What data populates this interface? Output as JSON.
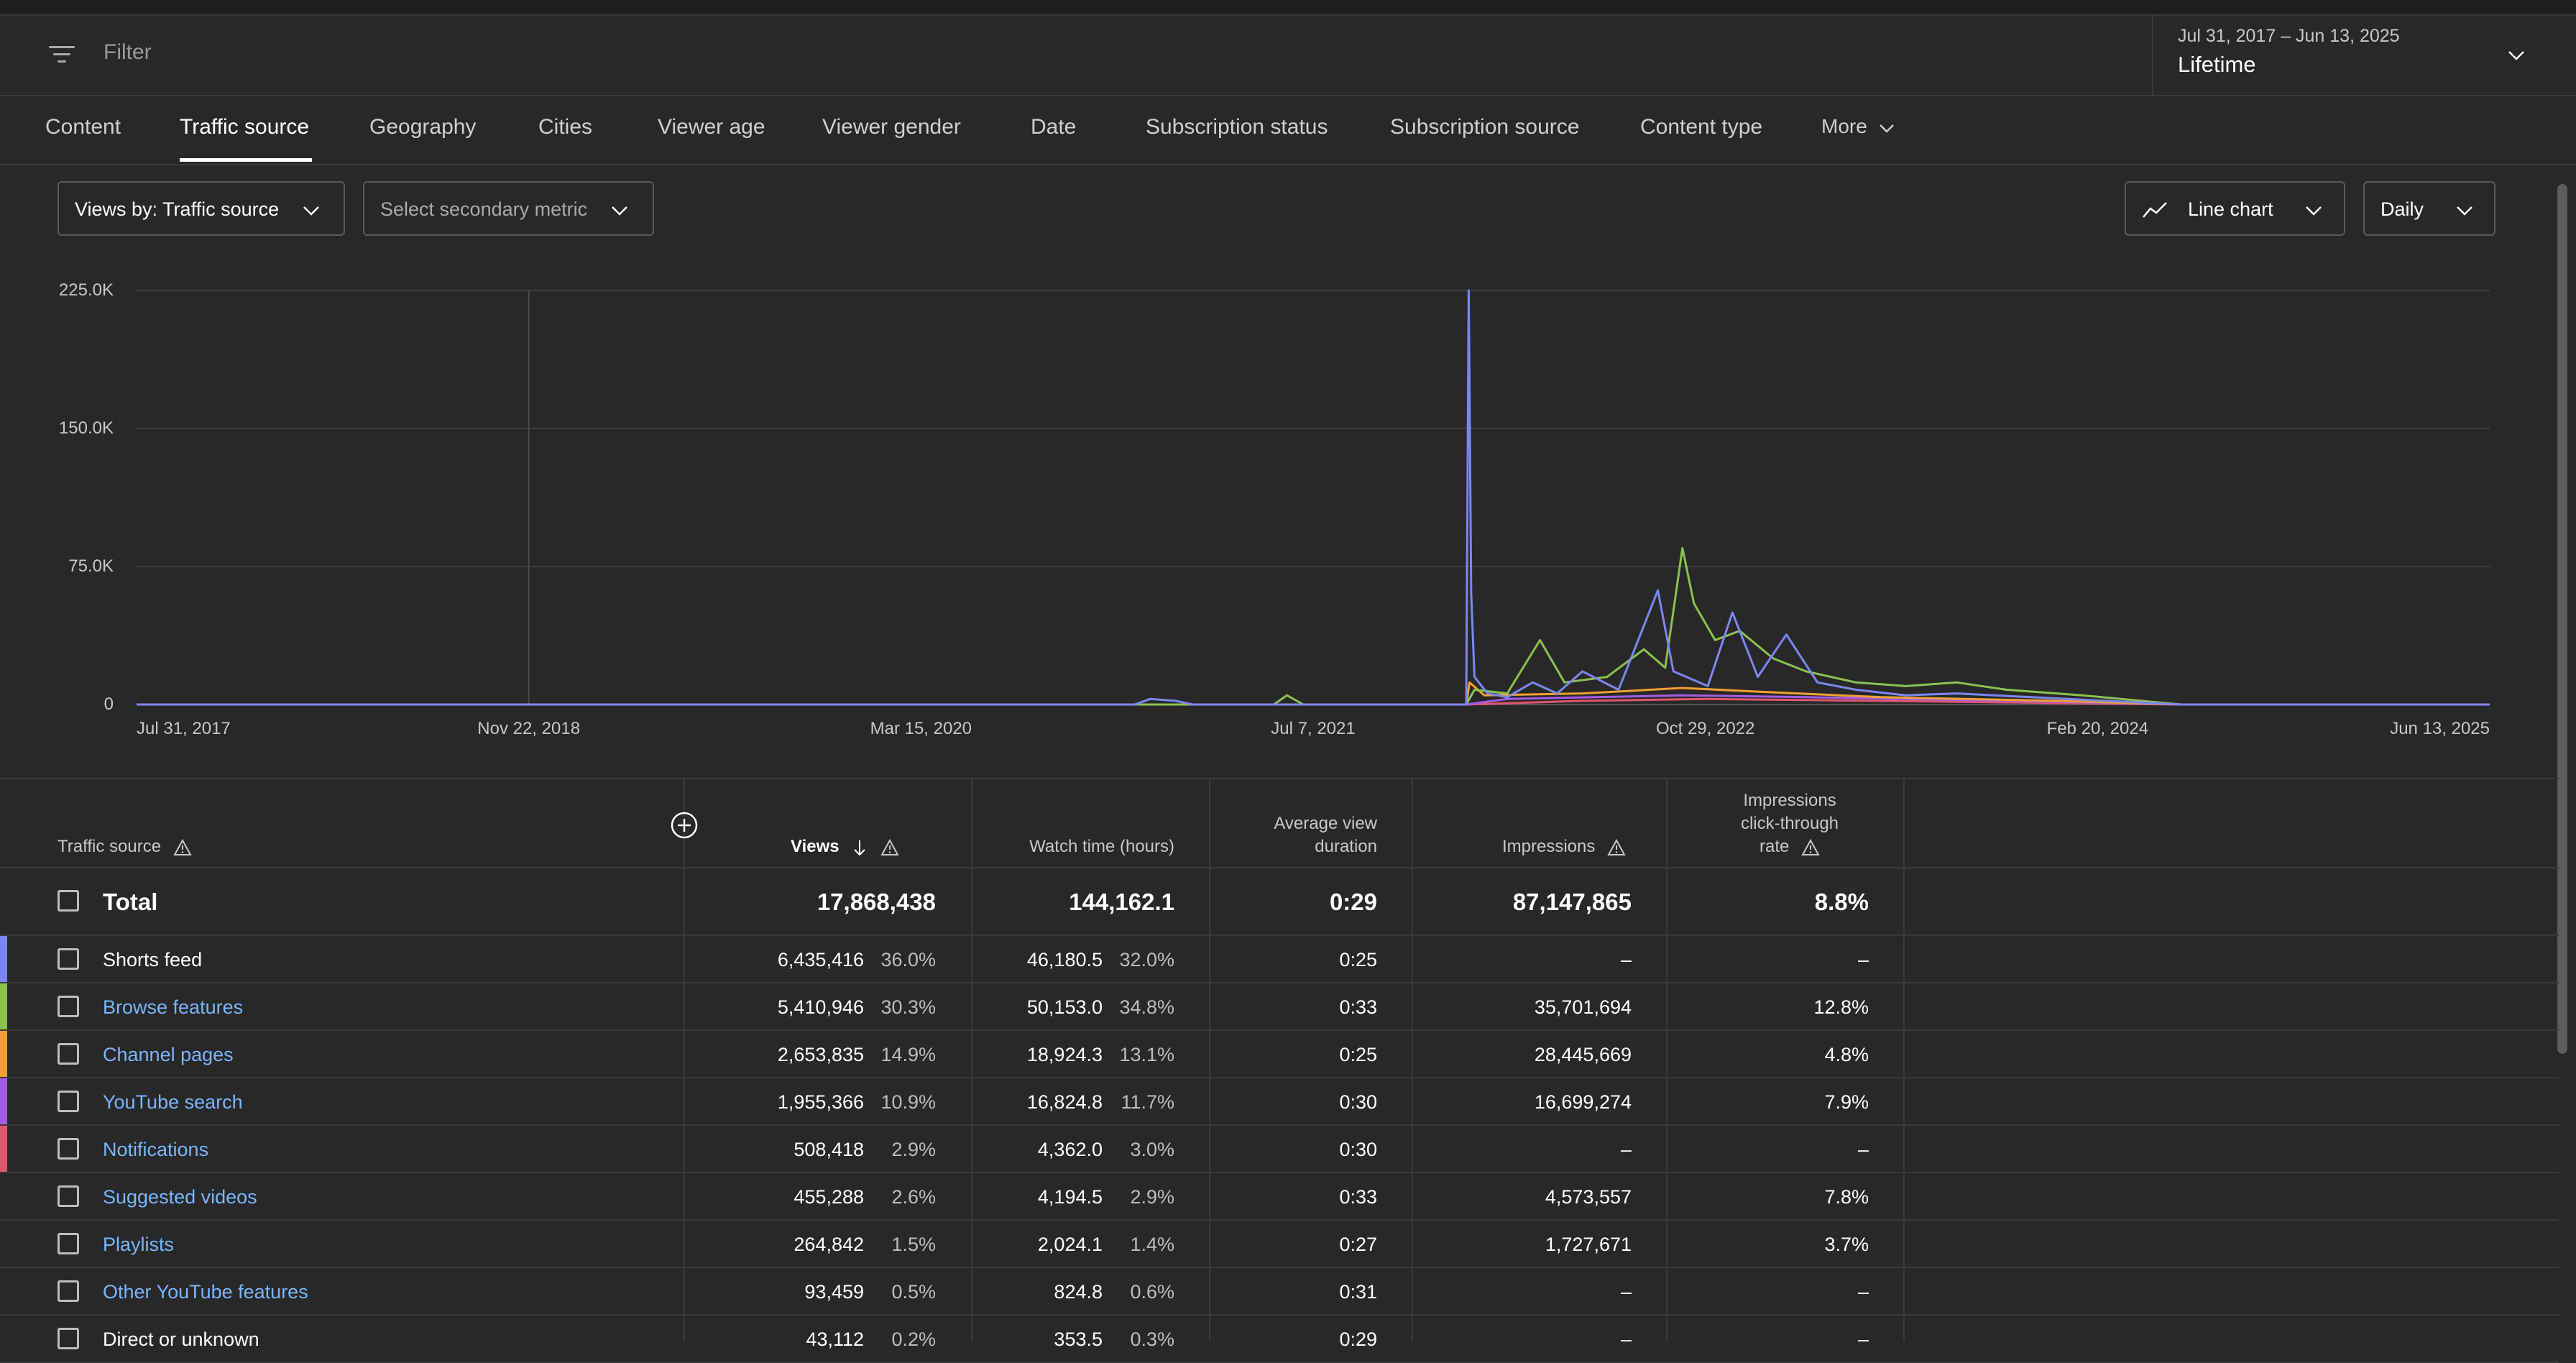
{
  "filter": {
    "placeholder": "Filter"
  },
  "date_range": {
    "range": "Jul 31, 2017 – Jun 13, 2025",
    "period": "Lifetime"
  },
  "tabs": [
    "Content",
    "Traffic source",
    "Geography",
    "Cities",
    "Viewer age",
    "Viewer gender",
    "Date",
    "Subscription status",
    "Subscription source",
    "Content type",
    "More"
  ],
  "active_tab": "Traffic source",
  "controls": {
    "primary_metric": "Views by: Traffic source",
    "secondary_metric": "Select secondary metric",
    "chart_type": "Line chart",
    "granularity": "Daily"
  },
  "colors": {
    "shorts": "#7b87f0",
    "browse": "#8cc152",
    "channel": "#f0a030",
    "search": "#a45ce6",
    "notifications": "#e0566e",
    "background": "#282828",
    "link": "#7ab6ff"
  },
  "chart_data": {
    "type": "line",
    "y_ticks": [
      "0",
      "75.0K",
      "150.0K",
      "225.0K"
    ],
    "ylim": [
      0,
      225000
    ],
    "x_ticks": [
      "Jul 31, 2017",
      "Nov 22, 2018",
      "Mar 15, 2020",
      "Jul 7, 2021",
      "Oct 29, 2022",
      "Feb 20, 2024",
      "Jun 13, 2025"
    ],
    "x_range": [
      "2017-07-31",
      "2025-06-13"
    ],
    "grid": true,
    "series": [
      {
        "name": "Shorts feed",
        "color": "#7b87f0",
        "points": [
          [
            "2017-07-31",
            0
          ],
          [
            "2020-12-01",
            0
          ],
          [
            "2020-12-20",
            3000
          ],
          [
            "2021-01-20",
            2000
          ],
          [
            "2021-02-10",
            0
          ],
          [
            "2022-01-10",
            0
          ],
          [
            "2022-01-13",
            225000
          ],
          [
            "2022-01-16",
            60000
          ],
          [
            "2022-01-20",
            15000
          ],
          [
            "2022-02-05",
            6000
          ],
          [
            "2022-03-01",
            4000
          ],
          [
            "2022-04-01",
            12000
          ],
          [
            "2022-05-01",
            6000
          ],
          [
            "2022-06-01",
            18000
          ],
          [
            "2022-07-15",
            8000
          ],
          [
            "2022-09-01",
            62000
          ],
          [
            "2022-09-20",
            18000
          ],
          [
            "2022-11-01",
            10000
          ],
          [
            "2022-12-01",
            50000
          ],
          [
            "2023-01-01",
            15000
          ],
          [
            "2023-02-05",
            38000
          ],
          [
            "2023-03-15",
            12000
          ],
          [
            "2023-05-01",
            8000
          ],
          [
            "2023-07-01",
            5000
          ],
          [
            "2023-09-01",
            6000
          ],
          [
            "2023-12-01",
            4000
          ],
          [
            "2024-03-01",
            2000
          ],
          [
            "2024-06-01",
            0
          ],
          [
            "2025-06-13",
            0
          ]
        ]
      },
      {
        "name": "Browse features",
        "color": "#8cc152",
        "points": [
          [
            "2017-07-31",
            0
          ],
          [
            "2021-05-20",
            0
          ],
          [
            "2021-06-05",
            5000
          ],
          [
            "2021-06-25",
            0
          ],
          [
            "2022-01-10",
            0
          ],
          [
            "2022-01-20",
            8000
          ],
          [
            "2022-03-01",
            6000
          ],
          [
            "2022-04-10",
            35000
          ],
          [
            "2022-05-10",
            12000
          ],
          [
            "2022-07-01",
            15000
          ],
          [
            "2022-08-15",
            30000
          ],
          [
            "2022-09-10",
            20000
          ],
          [
            "2022-10-01",
            85000
          ],
          [
            "2022-10-15",
            55000
          ],
          [
            "2022-11-10",
            35000
          ],
          [
            "2022-12-10",
            40000
          ],
          [
            "2023-01-20",
            25000
          ],
          [
            "2023-03-01",
            18000
          ],
          [
            "2023-05-01",
            12000
          ],
          [
            "2023-07-01",
            10000
          ],
          [
            "2023-09-01",
            12000
          ],
          [
            "2023-11-01",
            8000
          ],
          [
            "2024-02-01",
            5000
          ],
          [
            "2024-06-01",
            0
          ],
          [
            "2025-06-13",
            0
          ]
        ]
      },
      {
        "name": "Channel pages",
        "color": "#f0a030",
        "points": [
          [
            "2017-07-31",
            0
          ],
          [
            "2022-01-10",
            0
          ],
          [
            "2022-01-14",
            12000
          ],
          [
            "2022-02-01",
            5000
          ],
          [
            "2022-06-01",
            6000
          ],
          [
            "2022-10-01",
            9000
          ],
          [
            "2023-01-01",
            7000
          ],
          [
            "2023-06-01",
            4000
          ],
          [
            "2024-01-01",
            2000
          ],
          [
            "2024-06-01",
            0
          ],
          [
            "2025-06-13",
            0
          ]
        ]
      },
      {
        "name": "YouTube search",
        "color": "#a45ce6",
        "points": [
          [
            "2017-07-31",
            0
          ],
          [
            "2022-01-10",
            0
          ],
          [
            "2022-03-01",
            3000
          ],
          [
            "2022-10-01",
            5000
          ],
          [
            "2023-03-01",
            4000
          ],
          [
            "2024-01-01",
            1500
          ],
          [
            "2024-06-01",
            0
          ],
          [
            "2025-06-13",
            0
          ]
        ]
      },
      {
        "name": "Notifications",
        "color": "#e0566e",
        "points": [
          [
            "2017-07-31",
            0
          ],
          [
            "2022-01-10",
            0
          ],
          [
            "2022-06-01",
            2000
          ],
          [
            "2022-11-01",
            3000
          ],
          [
            "2023-06-01",
            2000
          ],
          [
            "2024-06-01",
            0
          ],
          [
            "2025-06-13",
            0
          ]
        ]
      }
    ]
  },
  "table": {
    "headers": {
      "source": "Traffic source",
      "views": "Views",
      "watch_time": "Watch time (hours)",
      "avd": [
        "Average view",
        "duration"
      ],
      "impressions": "Impressions",
      "ctr": [
        "Impressions",
        "click-through",
        "rate"
      ]
    },
    "total": {
      "label": "Total",
      "views": "17,868,438",
      "watch_time": "144,162.1",
      "avd": "0:29",
      "impressions": "87,147,865",
      "ctr": "8.8%"
    },
    "rows": [
      {
        "name": "Shorts feed",
        "link": false,
        "color": "#7b87f0",
        "views": "6,435,416",
        "views_pct": "36.0%",
        "wt": "46,180.5",
        "wt_pct": "32.0%",
        "avd": "0:25",
        "impressions": "–",
        "ctr": "–"
      },
      {
        "name": "Browse features",
        "link": true,
        "color": "#8cc152",
        "views": "5,410,946",
        "views_pct": "30.3%",
        "wt": "50,153.0",
        "wt_pct": "34.8%",
        "avd": "0:33",
        "impressions": "35,701,694",
        "ctr": "12.8%"
      },
      {
        "name": "Channel pages",
        "link": true,
        "color": "#f0a030",
        "views": "2,653,835",
        "views_pct": "14.9%",
        "wt": "18,924.3",
        "wt_pct": "13.1%",
        "avd": "0:25",
        "impressions": "28,445,669",
        "ctr": "4.8%"
      },
      {
        "name": "YouTube search",
        "link": true,
        "color": "#a45ce6",
        "views": "1,955,366",
        "views_pct": "10.9%",
        "wt": "16,824.8",
        "wt_pct": "11.7%",
        "avd": "0:30",
        "impressions": "16,699,274",
        "ctr": "7.9%"
      },
      {
        "name": "Notifications",
        "link": true,
        "color": "#e0566e",
        "views": "508,418",
        "views_pct": "2.9%",
        "wt": "4,362.0",
        "wt_pct": "3.0%",
        "avd": "0:30",
        "impressions": "–",
        "ctr": "–"
      },
      {
        "name": "Suggested videos",
        "link": true,
        "color": "",
        "views": "455,288",
        "views_pct": "2.6%",
        "wt": "4,194.5",
        "wt_pct": "2.9%",
        "avd": "0:33",
        "impressions": "4,573,557",
        "ctr": "7.8%"
      },
      {
        "name": "Playlists",
        "link": true,
        "color": "",
        "views": "264,842",
        "views_pct": "1.5%",
        "wt": "2,024.1",
        "wt_pct": "1.4%",
        "avd": "0:27",
        "impressions": "1,727,671",
        "ctr": "3.7%"
      },
      {
        "name": "Other YouTube features",
        "link": true,
        "color": "",
        "views": "93,459",
        "views_pct": "0.5%",
        "wt": "824.8",
        "wt_pct": "0.6%",
        "avd": "0:31",
        "impressions": "–",
        "ctr": "–"
      },
      {
        "name": "Direct or unknown",
        "link": false,
        "color": "",
        "views": "43,112",
        "views_pct": "0.2%",
        "wt": "353.5",
        "wt_pct": "0.3%",
        "avd": "0:29",
        "impressions": "–",
        "ctr": "–"
      }
    ]
  }
}
